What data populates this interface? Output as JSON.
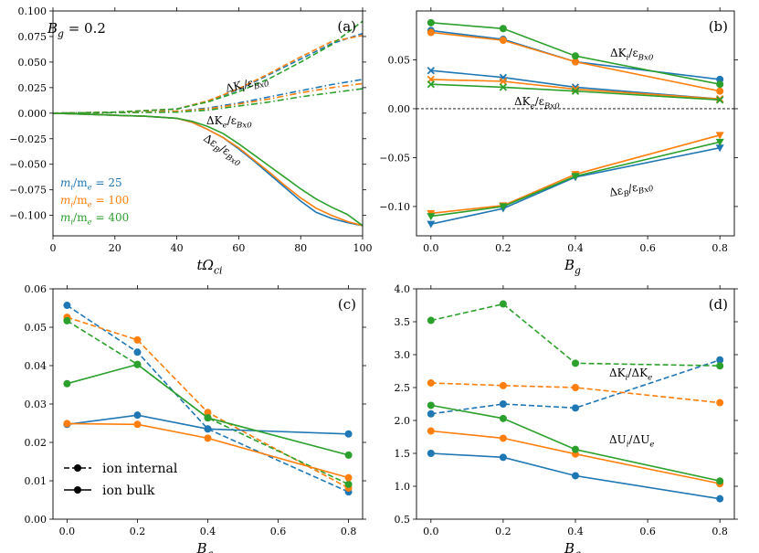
{
  "figure": {
    "colors": {
      "blue": "#1f77b4",
      "orange": "#ff7f0e",
      "green": "#2ca02c"
    }
  },
  "chart_data": [
    {
      "id": "a",
      "type": "line",
      "panel_label": "(a)",
      "xlabel": "tΩci",
      "ylabel": "",
      "xlim": [
        0,
        100
      ],
      "ylim": [
        -0.12,
        0.1
      ],
      "xticks": [
        0,
        20,
        40,
        60,
        80,
        100
      ],
      "xtick_labels": [
        "0",
        "20",
        "40",
        "60",
        "80",
        "100"
      ],
      "yticks": [
        -0.1,
        -0.075,
        -0.05,
        -0.025,
        0,
        0.025,
        0.05,
        0.075,
        0.1
      ],
      "ytick_labels": [
        "−0.100",
        "−0.075",
        "−0.050",
        "−0.025",
        "0.000",
        "0.025",
        "0.050",
        "0.075",
        "0.100"
      ],
      "annotations": [
        {
          "text": "Bg = 0.2",
          "x": 2,
          "y": 0.0855
        },
        {
          "text": "ΔKi/εBx0",
          "x": 52,
          "y": 0.031,
          "rotate": -13
        },
        {
          "text": "ΔKe/εBx0",
          "x": 47,
          "y": -0.006,
          "rotate": 0
        },
        {
          "text": "ΔεB/εBx0",
          "x": 59,
          "y": -0.043,
          "rotate": 33
        }
      ],
      "legend": {
        "placement": "bottom-left",
        "entries": [
          {
            "text": "mi/me = 25",
            "color": "#1f77b4"
          },
          {
            "text": "mi/me = 100",
            "color": "#ff7f0e"
          },
          {
            "text": "mi/me = 400",
            "color": "#2ca02c"
          }
        ]
      },
      "series": [
        {
          "name": "ΔKi mi/me=25",
          "color": "#1f77b4",
          "style": "dashed",
          "x": [
            0,
            20,
            40,
            50,
            60,
            70,
            80,
            90,
            100
          ],
          "y": [
            0,
            0.001,
            0.004,
            0.012,
            0.023,
            0.038,
            0.053,
            0.068,
            0.078
          ]
        },
        {
          "name": "ΔKi mi/me=100",
          "color": "#ff7f0e",
          "style": "dashed",
          "x": [
            0,
            20,
            40,
            50,
            60,
            70,
            80,
            90,
            100
          ],
          "y": [
            0,
            0.001,
            0.004,
            0.012,
            0.024,
            0.039,
            0.055,
            0.07,
            0.076
          ]
        },
        {
          "name": "ΔKi mi/me=400",
          "color": "#2ca02c",
          "style": "dashed",
          "x": [
            0,
            20,
            40,
            50,
            60,
            70,
            80,
            90,
            100
          ],
          "y": [
            0,
            0.001,
            0.004,
            0.011,
            0.021,
            0.034,
            0.05,
            0.067,
            0.09
          ]
        },
        {
          "name": "ΔKe mi/me=25",
          "color": "#1f77b4",
          "style": "dashdot",
          "x": [
            0,
            20,
            40,
            50,
            60,
            70,
            80,
            90,
            100
          ],
          "y": [
            0,
            0.0005,
            0.002,
            0.005,
            0.01,
            0.016,
            0.022,
            0.028,
            0.033
          ]
        },
        {
          "name": "ΔKe mi/me=100",
          "color": "#ff7f0e",
          "style": "dashdot",
          "x": [
            0,
            20,
            40,
            50,
            60,
            70,
            80,
            90,
            100
          ],
          "y": [
            0,
            0.0005,
            0.002,
            0.004,
            0.009,
            0.014,
            0.02,
            0.025,
            0.029
          ]
        },
        {
          "name": "ΔKe mi/me=400",
          "color": "#2ca02c",
          "style": "dashdot",
          "x": [
            0,
            20,
            40,
            50,
            60,
            70,
            80,
            90,
            100
          ],
          "y": [
            0,
            0.0005,
            0.001,
            0.003,
            0.007,
            0.011,
            0.016,
            0.02,
            0.024
          ]
        },
        {
          "name": "ΔεB mi/me=25",
          "color": "#1f77b4",
          "style": "solid",
          "x": [
            0,
            10,
            20,
            30,
            40,
            45,
            50,
            55,
            60,
            65,
            70,
            75,
            80,
            85,
            90,
            95,
            100
          ],
          "y": [
            0,
            -0.001,
            -0.002,
            -0.003,
            -0.005,
            -0.009,
            -0.016,
            -0.024,
            -0.035,
            -0.047,
            -0.06,
            -0.073,
            -0.086,
            -0.097,
            -0.103,
            -0.107,
            -0.11
          ]
        },
        {
          "name": "ΔεB mi/me=100",
          "color": "#ff7f0e",
          "style": "solid",
          "x": [
            0,
            10,
            20,
            30,
            40,
            45,
            50,
            55,
            60,
            65,
            70,
            75,
            80,
            85,
            90,
            95,
            100
          ],
          "y": [
            0,
            -0.001,
            -0.002,
            -0.003,
            -0.005,
            -0.009,
            -0.016,
            -0.024,
            -0.034,
            -0.046,
            -0.058,
            -0.071,
            -0.083,
            -0.093,
            -0.1,
            -0.106,
            -0.11
          ]
        },
        {
          "name": "ΔεB mi/me=400",
          "color": "#2ca02c",
          "style": "solid",
          "x": [
            0,
            10,
            20,
            30,
            40,
            45,
            50,
            55,
            60,
            65,
            70,
            75,
            80,
            85,
            90,
            95,
            100
          ],
          "y": [
            0,
            -0.001,
            -0.002,
            -0.003,
            -0.005,
            -0.008,
            -0.013,
            -0.02,
            -0.03,
            -0.041,
            -0.052,
            -0.063,
            -0.074,
            -0.084,
            -0.092,
            -0.099,
            -0.11
          ]
        }
      ]
    },
    {
      "id": "b",
      "type": "line",
      "panel_label": "(b)",
      "xlabel": "Bg",
      "ylabel": "",
      "xlim": [
        -0.04,
        0.84
      ],
      "ylim": [
        -0.13,
        0.1
      ],
      "xticks": [
        0,
        0.2,
        0.4,
        0.6,
        0.8
      ],
      "xtick_labels": [
        "0.0",
        "0.2",
        "0.4",
        "0.6",
        "0.8"
      ],
      "yticks": [
        -0.1,
        -0.05,
        0,
        0.05
      ],
      "ytick_labels": [
        "−0.10",
        "−0.05",
        "0.00",
        "0.05"
      ],
      "zero_line": true,
      "annotations": [
        {
          "text": "ΔKi/εBx0",
          "x": 0.54,
          "y": 0.053
        },
        {
          "text": "ΔKe/εBx0",
          "x": 0.25,
          "y": 0.004
        },
        {
          "text": "ΔεB/εBx0",
          "x": 0.57,
          "y": -0.076,
          "rotate": -12
        }
      ],
      "series": [
        {
          "name": "ΔKi mi/me=25",
          "color": "#1f77b4",
          "marker": "circle",
          "x": [
            0,
            0.2,
            0.4,
            0.8
          ],
          "y": [
            0.08,
            0.071,
            0.048,
            0.03
          ]
        },
        {
          "name": "ΔKi mi/me=100",
          "color": "#ff7f0e",
          "marker": "circle",
          "x": [
            0,
            0.2,
            0.4,
            0.8
          ],
          "y": [
            0.078,
            0.07,
            0.048,
            0.018
          ]
        },
        {
          "name": "ΔKi mi/me=400",
          "color": "#2ca02c",
          "marker": "circle",
          "x": [
            0,
            0.2,
            0.4,
            0.8
          ],
          "y": [
            0.088,
            0.082,
            0.054,
            0.025
          ]
        },
        {
          "name": "ΔKe mi/me=25",
          "color": "#1f77b4",
          "marker": "x",
          "x": [
            0,
            0.2,
            0.4,
            0.8
          ],
          "y": [
            0.039,
            0.032,
            0.022,
            0.01
          ]
        },
        {
          "name": "ΔKe mi/me=100",
          "color": "#ff7f0e",
          "marker": "x",
          "x": [
            0,
            0.2,
            0.4,
            0.8
          ],
          "y": [
            0.03,
            0.028,
            0.02,
            0.01
          ]
        },
        {
          "name": "ΔKe mi/me=400",
          "color": "#2ca02c",
          "marker": "x",
          "x": [
            0,
            0.2,
            0.4,
            0.8
          ],
          "y": [
            0.025,
            0.022,
            0.018,
            0.009
          ]
        },
        {
          "name": "ΔεB mi/me=25",
          "color": "#1f77b4",
          "marker": "tri",
          "x": [
            0,
            0.2,
            0.4,
            0.8
          ],
          "y": [
            -0.118,
            -0.102,
            -0.07,
            -0.04
          ]
        },
        {
          "name": "ΔεB mi/me=100",
          "color": "#ff7f0e",
          "marker": "tri",
          "x": [
            0,
            0.2,
            0.4,
            0.8
          ],
          "y": [
            -0.107,
            -0.099,
            -0.067,
            -0.027
          ]
        },
        {
          "name": "ΔεB mi/me=400",
          "color": "#2ca02c",
          "marker": "tri",
          "x": [
            0,
            0.2,
            0.4,
            0.8
          ],
          "y": [
            -0.11,
            -0.1,
            -0.069,
            -0.034
          ]
        }
      ]
    },
    {
      "id": "c",
      "type": "line",
      "panel_label": "(c)",
      "xlabel": "Bg",
      "ylabel": "",
      "xlim": [
        -0.04,
        0.84
      ],
      "ylim": [
        0,
        0.06
      ],
      "xticks": [
        0,
        0.2,
        0.4,
        0.6,
        0.8
      ],
      "xtick_labels": [
        "0.0",
        "0.2",
        "0.4",
        "0.6",
        "0.8"
      ],
      "yticks": [
        0,
        0.01,
        0.02,
        0.03,
        0.04,
        0.05,
        0.06
      ],
      "ytick_labels": [
        "0.00",
        "0.01",
        "0.02",
        "0.03",
        "0.04",
        "0.05",
        "0.06"
      ],
      "legend": {
        "placement": "bottom-left",
        "entries": [
          {
            "text": "ion internal",
            "style": "dashed"
          },
          {
            "text": "ion bulk",
            "style": "solid"
          }
        ]
      },
      "series": [
        {
          "name": "internal mi/me=25",
          "color": "#1f77b4",
          "style": "dashed",
          "x": [
            0,
            0.2,
            0.4,
            0.8
          ],
          "y": [
            0.0557,
            0.0435,
            0.0235,
            0.0071
          ]
        },
        {
          "name": "internal mi/me=100",
          "color": "#ff7f0e",
          "style": "dashed",
          "x": [
            0,
            0.2,
            0.4,
            0.8
          ],
          "y": [
            0.0526,
            0.0467,
            0.0278,
            0.0081
          ]
        },
        {
          "name": "internal mi/me=400",
          "color": "#2ca02c",
          "style": "dashed",
          "x": [
            0,
            0.2,
            0.4,
            0.8
          ],
          "y": [
            0.0517,
            0.0403,
            0.0264,
            0.0091
          ]
        },
        {
          "name": "bulk mi/me=25",
          "color": "#1f77b4",
          "style": "solid",
          "x": [
            0,
            0.2,
            0.4,
            0.8
          ],
          "y": [
            0.0247,
            0.0271,
            0.0235,
            0.0222
          ]
        },
        {
          "name": "bulk mi/me=100",
          "color": "#ff7f0e",
          "style": "solid",
          "x": [
            0,
            0.2,
            0.4,
            0.8
          ],
          "y": [
            0.0249,
            0.0247,
            0.0211,
            0.0108
          ]
        },
        {
          "name": "bulk mi/me=400",
          "color": "#2ca02c",
          "style": "solid",
          "x": [
            0,
            0.2,
            0.4,
            0.8
          ],
          "y": [
            0.0353,
            0.0403,
            0.0264,
            0.0167
          ]
        }
      ]
    },
    {
      "id": "d",
      "type": "line",
      "panel_label": "(d)",
      "xlabel": "Bg",
      "ylabel": "",
      "xlim": [
        -0.04,
        0.84
      ],
      "ylim": [
        0.5,
        4.0
      ],
      "xticks": [
        0,
        0.2,
        0.4,
        0.6,
        0.8
      ],
      "xtick_labels": [
        "0.0",
        "0.2",
        "0.4",
        "0.6",
        "0.8"
      ],
      "yticks": [
        0.5,
        1,
        1.5,
        2,
        2.5,
        3,
        3.5,
        4
      ],
      "ytick_labels": [
        "0.5",
        "1.0",
        "1.5",
        "2.0",
        "2.5",
        "3.0",
        "3.5",
        "4.0"
      ],
      "annotations": [
        {
          "text": "ΔKi/ΔKe",
          "x": 0.5,
          "y": 3.02
        },
        {
          "text": "ΔUi/ΔUe",
          "x": 0.5,
          "y": 1.82
        }
      ],
      "series": [
        {
          "name": "ΔKi/ΔKe mi/me=25",
          "color": "#1f77b4",
          "style": "dashed",
          "x": [
            0,
            0.2,
            0.4,
            0.8
          ],
          "y": [
            2.1,
            2.25,
            2.19,
            2.92
          ]
        },
        {
          "name": "ΔKi/ΔKe mi/me=100",
          "color": "#ff7f0e",
          "style": "dashed",
          "x": [
            0,
            0.2,
            0.4,
            0.8
          ],
          "y": [
            2.57,
            2.53,
            2.5,
            2.27
          ]
        },
        {
          "name": "ΔKi/ΔKe mi/me=400",
          "color": "#2ca02c",
          "style": "dashed",
          "x": [
            0,
            0.2,
            0.4,
            0.8
          ],
          "y": [
            3.52,
            3.77,
            2.87,
            2.83
          ]
        },
        {
          "name": "ΔUi/ΔUe mi/me=25",
          "color": "#1f77b4",
          "style": "solid",
          "x": [
            0,
            0.2,
            0.4,
            0.8
          ],
          "y": [
            1.5,
            1.44,
            1.16,
            0.81
          ]
        },
        {
          "name": "ΔUi/ΔUe mi/me=100",
          "color": "#ff7f0e",
          "style": "solid",
          "x": [
            0,
            0.2,
            0.4,
            0.8
          ],
          "y": [
            1.84,
            1.73,
            1.49,
            1.04
          ]
        },
        {
          "name": "ΔUi/ΔUe mi/me=400",
          "color": "#2ca02c",
          "style": "solid",
          "x": [
            0,
            0.2,
            0.4,
            0.8
          ],
          "y": [
            2.23,
            2.03,
            1.56,
            1.08
          ]
        }
      ]
    }
  ]
}
